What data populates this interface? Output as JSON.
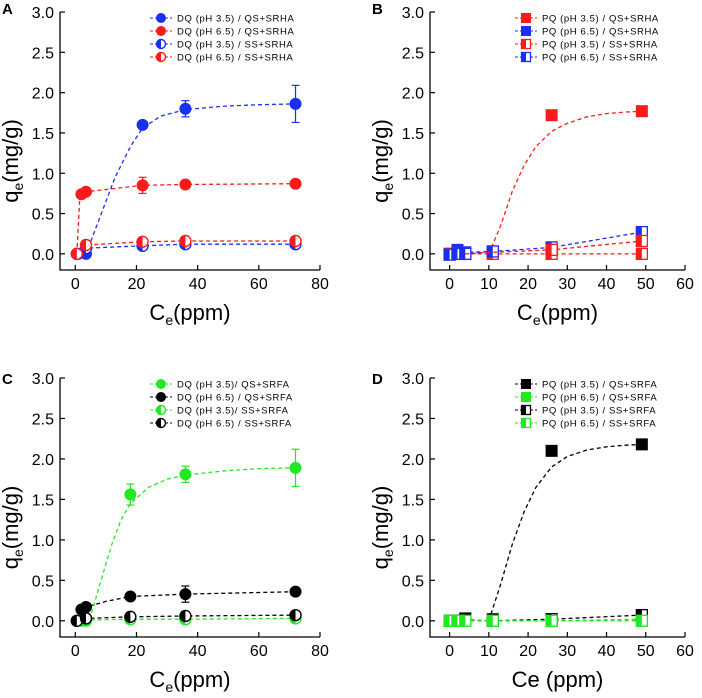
{
  "figure": {
    "panels": [
      {
        "id": "A",
        "label": "A"
      },
      {
        "id": "B",
        "label": "B"
      },
      {
        "id": "C",
        "label": "C"
      },
      {
        "id": "D",
        "label": "D"
      }
    ]
  },
  "chart_data": [
    {
      "panel": "A",
      "type": "scatter",
      "ylabel": "q",
      "ylabel_sub": "e",
      "ylabel_suffix": "(mg/g)",
      "xlabel": "C",
      "xlabel_sub": "e",
      "xlabel_suffix": "(ppm)",
      "xlim": [
        -5,
        80
      ],
      "ylim": [
        -0.2,
        3.0
      ],
      "xticks": [
        0,
        20,
        40,
        60,
        80
      ],
      "yticks": [
        0.0,
        0.5,
        1.0,
        1.5,
        2.0,
        2.5,
        3.0
      ],
      "legend_position": "top-right",
      "series": [
        {
          "name": "DQ (pH 3.5) / QS+SRHA",
          "color": "#1a2ff0",
          "marker": "circle",
          "fill": "full",
          "x": [
            1,
            3.5,
            22,
            36,
            72
          ],
          "y": [
            0.0,
            0.0,
            1.6,
            1.8,
            1.86
          ],
          "err": [
            0,
            0,
            0.04,
            0.1,
            0.23
          ],
          "fit": [
            [
              1,
              0.0
            ],
            [
              3.5,
              0.0
            ],
            [
              8,
              0.45
            ],
            [
              13,
              0.95
            ],
            [
              18,
              1.33
            ],
            [
              22,
              1.56
            ],
            [
              28,
              1.71
            ],
            [
              36,
              1.79
            ],
            [
              48,
              1.83
            ],
            [
              60,
              1.85
            ],
            [
              72,
              1.86
            ]
          ]
        },
        {
          "name": "DQ (pH 6.5) / QS+SRHA",
          "color": "#ff1a1a",
          "marker": "circle",
          "fill": "full",
          "x": [
            0.5,
            2,
            3.5,
            22,
            36,
            72
          ],
          "y": [
            0.0,
            0.74,
            0.77,
            0.85,
            0.86,
            0.87
          ],
          "err": [
            0,
            0,
            0,
            0.1,
            0.05,
            0
          ],
          "fit": [
            [
              0.5,
              0.0
            ],
            [
              1.5,
              0.72
            ],
            [
              3.5,
              0.77
            ],
            [
              22,
              0.85
            ],
            [
              36,
              0.86
            ],
            [
              72,
              0.87
            ]
          ]
        },
        {
          "name": "DQ (pH 3.5) / SS+SRHA",
          "color": "#1a2ff0",
          "marker": "circle",
          "fill": "half",
          "x": [
            0.5,
            3.5,
            22,
            36,
            72
          ],
          "y": [
            0.0,
            0.07,
            0.1,
            0.12,
            0.12
          ],
          "err": [
            0,
            0,
            0,
            0,
            0
          ],
          "fit": [
            [
              0.5,
              0.0
            ],
            [
              3.5,
              0.07
            ],
            [
              22,
              0.1
            ],
            [
              36,
              0.12
            ],
            [
              72,
              0.12
            ]
          ]
        },
        {
          "name": "DQ (pH 6.5) / SS+SRHA",
          "color": "#ff1a1a",
          "marker": "circle",
          "fill": "half",
          "x": [
            0.5,
            3.5,
            22,
            36,
            72
          ],
          "y": [
            0.0,
            0.11,
            0.15,
            0.16,
            0.16
          ],
          "err": [
            0,
            0,
            0,
            0,
            0
          ],
          "fit": [
            [
              0.5,
              0.0
            ],
            [
              3.5,
              0.11
            ],
            [
              22,
              0.15
            ],
            [
              36,
              0.16
            ],
            [
              72,
              0.16
            ]
          ]
        }
      ]
    },
    {
      "panel": "B",
      "type": "scatter",
      "ylabel": "q",
      "ylabel_sub": "e",
      "ylabel_suffix": "(mg/g)",
      "xlabel": "C",
      "xlabel_sub": "e",
      "xlabel_suffix": "(ppm)",
      "xlim": [
        -5,
        60
      ],
      "ylim": [
        -0.2,
        3.0
      ],
      "xticks": [
        0,
        10,
        20,
        30,
        40,
        50,
        60
      ],
      "yticks": [
        0.0,
        0.5,
        1.0,
        1.5,
        2.0,
        2.5,
        3.0
      ],
      "legend_position": "top-right",
      "series": [
        {
          "name": "PQ (pH 3.5) / QS+SRHA",
          "color": "#ff1a1a",
          "marker": "square",
          "fill": "full",
          "x": [
            0,
            2,
            4,
            11,
            26,
            49
          ],
          "y": [
            0.0,
            0.0,
            0.0,
            0.0,
            1.72,
            1.77
          ],
          "err": [
            0,
            0,
            0,
            0,
            0,
            0
          ],
          "fit": [
            [
              10,
              0.0
            ],
            [
              13,
              0.35
            ],
            [
              16,
              0.78
            ],
            [
              19,
              1.1
            ],
            [
              22,
              1.33
            ],
            [
              26,
              1.52
            ],
            [
              30,
              1.62
            ],
            [
              35,
              1.7
            ],
            [
              40,
              1.74
            ],
            [
              45,
              1.76
            ],
            [
              49,
              1.77
            ]
          ]
        },
        {
          "name": "PQ (pH 6.5) / QS+SRHA",
          "color": "#1a2ff0",
          "marker": "square",
          "fill": "full",
          "x": [
            0,
            2,
            4,
            11
          ],
          "y": [
            0.0,
            0.05,
            0.02,
            0.03
          ],
          "err": [
            0,
            0,
            0,
            0
          ],
          "fit": [
            [
              0,
              0.0
            ],
            [
              2,
              0.05
            ],
            [
              4,
              0.02
            ],
            [
              11,
              0.03
            ]
          ]
        },
        {
          "name": "PQ (pH 3.5) / SS+SRHA",
          "color": "#ff1a1a",
          "marker": "square",
          "fill": "half",
          "x": [
            0,
            2,
            4,
            11,
            26,
            49
          ],
          "y": [
            0.0,
            0.0,
            0.0,
            0.0,
            0.0,
            0.0
          ],
          "err": [
            0,
            0,
            0,
            0,
            0,
            0
          ],
          "fit": [
            [
              0,
              0.0
            ],
            [
              2,
              0.0
            ],
            [
              4,
              0.0
            ],
            [
              11,
              0.0
            ],
            [
              26,
              0.0
            ],
            [
              49,
              0.0
            ]
          ]
        },
        {
          "name": "PQ (pH 6.5) / SS+SRHA",
          "color": "#1a2ff0",
          "marker": "square",
          "fill": "half",
          "x": [
            0,
            2,
            4,
            11,
            26,
            49
          ],
          "y": [
            -0.01,
            0.0,
            0.0,
            0.03,
            0.08,
            0.27
          ],
          "err": [
            0,
            0,
            0,
            0,
            0,
            0
          ],
          "fit": [
            [
              0,
              -0.01
            ],
            [
              2,
              0.0
            ],
            [
              4,
              0.0
            ],
            [
              11,
              0.03
            ],
            [
              26,
              0.08
            ],
            [
              49,
              0.27
            ]
          ]
        },
        {
          "name": "PQ (pH 3.5) / SS+SRHA (connector)",
          "color": "#ff1a1a",
          "marker": "square",
          "fill": "half",
          "hidden_legend": true,
          "x": [
            26,
            49
          ],
          "y": [
            0.05,
            0.16
          ],
          "err": [
            0,
            0
          ],
          "fit": [
            [
              4,
              0.0
            ],
            [
              11,
              0.02
            ],
            [
              26,
              0.05
            ],
            [
              49,
              0.16
            ]
          ]
        }
      ]
    },
    {
      "panel": "C",
      "type": "scatter",
      "ylabel": "q",
      "ylabel_sub": "e",
      "ylabel_suffix": "(mg/g)",
      "xlabel": "C",
      "xlabel_sub": "e",
      "xlabel_suffix": "(ppm)",
      "xlim": [
        -5,
        80
      ],
      "ylim": [
        -0.2,
        3.0
      ],
      "xticks": [
        0,
        20,
        40,
        60,
        80
      ],
      "yticks": [
        0.0,
        0.5,
        1.0,
        1.5,
        2.0,
        2.5,
        3.0
      ],
      "legend_position": "top-right",
      "series": [
        {
          "name": "DQ (pH 3.5)/ QS+SRFA",
          "color": "#22e822",
          "marker": "circle",
          "fill": "full",
          "x": [
            2,
            3.5,
            18,
            36,
            72
          ],
          "y": [
            0.0,
            0.0,
            1.56,
            1.81,
            1.89
          ],
          "err": [
            0,
            0,
            0.13,
            0.1,
            0.23
          ],
          "fit": [
            [
              2,
              0.0
            ],
            [
              5,
              0.05
            ],
            [
              8,
              0.45
            ],
            [
              12,
              0.95
            ],
            [
              15,
              1.25
            ],
            [
              18,
              1.45
            ],
            [
              24,
              1.65
            ],
            [
              30,
              1.75
            ],
            [
              36,
              1.8
            ],
            [
              48,
              1.85
            ],
            [
              60,
              1.88
            ],
            [
              72,
              1.89
            ]
          ]
        },
        {
          "name": "DQ (pH 6.5) / QS+SRFA",
          "color": "#000000",
          "marker": "circle",
          "fill": "full",
          "x": [
            0.5,
            2,
            3.5,
            18,
            36,
            72
          ],
          "y": [
            0.0,
            0.14,
            0.17,
            0.3,
            0.33,
            0.36
          ],
          "err": [
            0,
            0,
            0,
            0.03,
            0.1,
            0.03
          ],
          "fit": [
            [
              0.5,
              0.0
            ],
            [
              2,
              0.14
            ],
            [
              3.5,
              0.17
            ],
            [
              10,
              0.24
            ],
            [
              18,
              0.3
            ],
            [
              36,
              0.33
            ],
            [
              72,
              0.36
            ]
          ]
        },
        {
          "name": "DQ (pH 3.5)/ SS+SRFA",
          "color": "#22e822",
          "marker": "circle",
          "fill": "half",
          "x": [
            0.5,
            3.5,
            18,
            36,
            72
          ],
          "y": [
            0.0,
            0.01,
            0.02,
            0.02,
            0.03
          ],
          "err": [
            0,
            0,
            0,
            0,
            0
          ],
          "fit": [
            [
              0.5,
              0.0
            ],
            [
              3.5,
              0.01
            ],
            [
              18,
              0.02
            ],
            [
              36,
              0.02
            ],
            [
              72,
              0.03
            ]
          ]
        },
        {
          "name": "DQ (pH 6.5) / SS+SRFA",
          "color": "#000000",
          "marker": "circle",
          "fill": "half",
          "x": [
            0.5,
            3.5,
            18,
            36,
            72
          ],
          "y": [
            0.0,
            0.03,
            0.05,
            0.06,
            0.07
          ],
          "err": [
            0,
            0,
            0.04,
            0.05,
            0.04
          ],
          "fit": [
            [
              0.5,
              0.0
            ],
            [
              3.5,
              0.03
            ],
            [
              18,
              0.05
            ],
            [
              36,
              0.06
            ],
            [
              72,
              0.07
            ]
          ]
        }
      ]
    },
    {
      "panel": "D",
      "type": "scatter",
      "ylabel": "q",
      "ylabel_sub": "e",
      "ylabel_suffix": "(mg/g)",
      "xlabel": "Ce (ppm)",
      "xlabel_sub": "",
      "xlabel_suffix": "",
      "xlim": [
        -5,
        60
      ],
      "ylim": [
        -0.2,
        3.0
      ],
      "xticks": [
        0,
        10,
        20,
        30,
        40,
        50,
        60
      ],
      "yticks": [
        0.0,
        0.5,
        1.0,
        1.5,
        2.0,
        2.5,
        3.0
      ],
      "legend_position": "top-right",
      "series": [
        {
          "name": "PQ (pH 3.5) / QS+SRFA",
          "color": "#000000",
          "marker": "square",
          "fill": "full",
          "x": [
            4,
            11,
            26,
            49
          ],
          "y": [
            0.03,
            0.02,
            2.1,
            2.18
          ],
          "err": [
            0,
            0,
            0,
            0
          ],
          "fit": [
            [
              10,
              0.0
            ],
            [
              13,
              0.45
            ],
            [
              16,
              0.95
            ],
            [
              19,
              1.35
            ],
            [
              22,
              1.65
            ],
            [
              26,
              1.9
            ],
            [
              30,
              2.03
            ],
            [
              35,
              2.11
            ],
            [
              40,
              2.15
            ],
            [
              45,
              2.17
            ],
            [
              49,
              2.18
            ]
          ]
        },
        {
          "name": "PQ (pH 6.5) / QS+SRFA",
          "color": "#22e822",
          "marker": "square",
          "fill": "full",
          "x": [
            0,
            2,
            4,
            11,
            26,
            49
          ],
          "y": [
            0.0,
            0.0,
            0.0,
            0.0,
            0.0,
            0.02
          ],
          "err": [
            0,
            0,
            0,
            0,
            0,
            0
          ],
          "fit": [
            [
              0,
              0.0
            ],
            [
              2,
              0.0
            ],
            [
              4,
              0.0
            ],
            [
              11,
              0.0
            ],
            [
              26,
              0.0
            ],
            [
              49,
              0.02
            ]
          ]
        },
        {
          "name": "PQ (pH 3.5) / SS+SRFA",
          "color": "#000000",
          "marker": "square",
          "fill": "half",
          "x": [
            0,
            2,
            4,
            11,
            26,
            49
          ],
          "y": [
            0.0,
            0.0,
            0.01,
            0.0,
            0.02,
            0.07
          ],
          "err": [
            0,
            0,
            0,
            0,
            0,
            0
          ],
          "fit": [
            [
              0,
              0.0
            ],
            [
              2,
              0.0
            ],
            [
              4,
              0.01
            ],
            [
              11,
              0.0
            ],
            [
              26,
              0.02
            ],
            [
              49,
              0.07
            ]
          ]
        },
        {
          "name": "PQ (pH 6.5) / SS+SRFA",
          "color": "#22e822",
          "marker": "square",
          "fill": "half",
          "x": [
            0,
            2,
            4,
            11,
            26,
            49
          ],
          "y": [
            0.0,
            0.0,
            0.0,
            0.0,
            0.0,
            0.0
          ],
          "err": [
            0,
            0,
            0,
            0,
            0,
            0
          ],
          "fit": [
            [
              0,
              0.0
            ],
            [
              2,
              0.0
            ],
            [
              4,
              0.0
            ],
            [
              11,
              0.0
            ],
            [
              26,
              0.0
            ],
            [
              49,
              0.0
            ]
          ]
        }
      ]
    }
  ]
}
